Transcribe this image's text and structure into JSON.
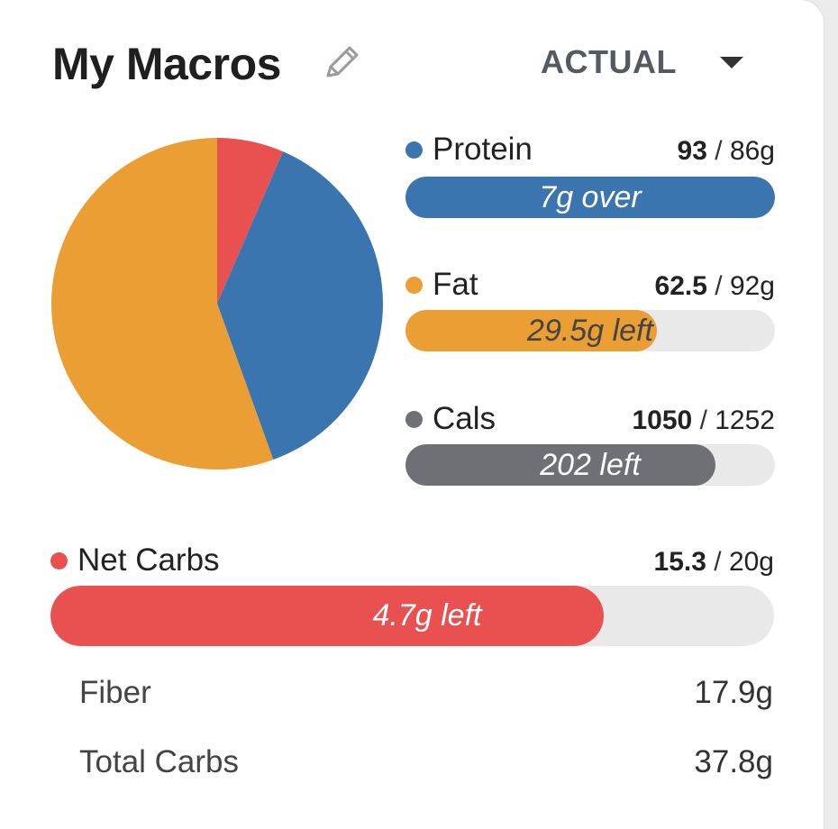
{
  "header": {
    "title": "My Macros",
    "mode_label": "ACTUAL"
  },
  "colors": {
    "protein": "#3a75b0",
    "fat": "#ea9e33",
    "cals": "#6e7076",
    "net_carbs": "#e95151",
    "track": "#e9e9ea"
  },
  "macros": {
    "protein": {
      "label": "Protein",
      "current": "93",
      "goal": "86g",
      "status": "7g over",
      "progress": 1.0
    },
    "fat": {
      "label": "Fat",
      "current": "62.5",
      "goal": "92g",
      "status": "29.5g left",
      "progress": 0.68
    },
    "cals": {
      "label": "Cals",
      "current": "1050",
      "goal": "1252",
      "status": "202 left",
      "progress": 0.84
    },
    "net_carbs": {
      "label": "Net Carbs",
      "current": "15.3",
      "goal": "20g",
      "status": "4.7g left",
      "progress": 0.765
    }
  },
  "details": {
    "fiber": {
      "label": "Fiber",
      "value": "17.9g"
    },
    "total_carbs": {
      "label": "Total Carbs",
      "value": "37.8g"
    }
  },
  "chart_data": {
    "type": "pie",
    "slices": [
      {
        "name": "Net Carbs",
        "value": 6.5,
        "color": "#e95151"
      },
      {
        "name": "Protein",
        "value": 38,
        "color": "#3a75b0"
      },
      {
        "name": "Fat",
        "value": 55.5,
        "color": "#ea9e33"
      }
    ]
  }
}
